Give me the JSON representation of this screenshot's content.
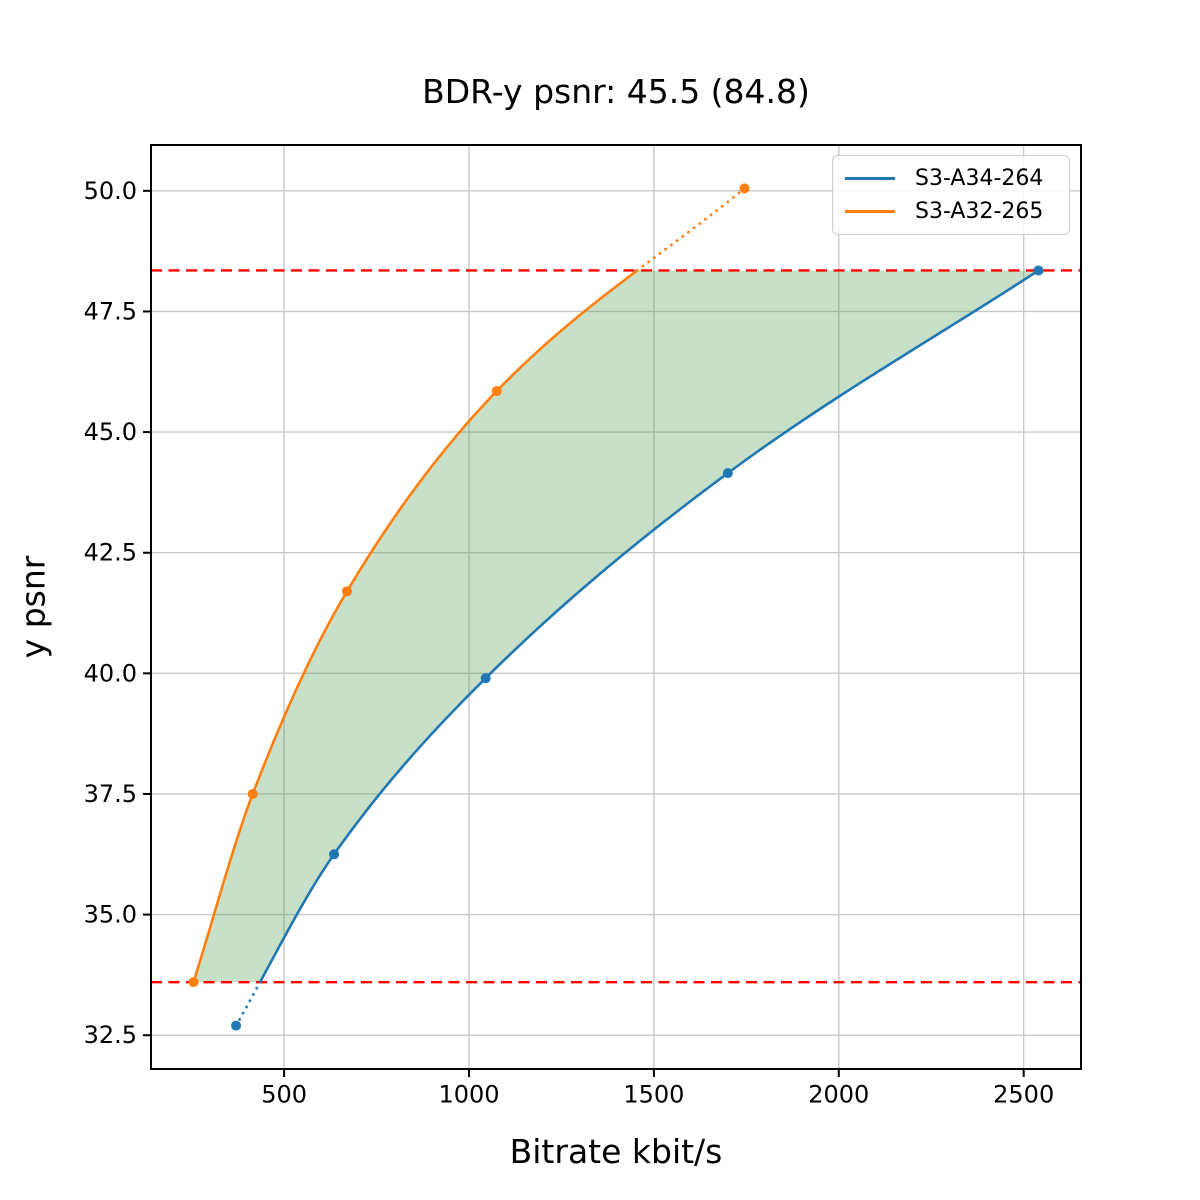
{
  "chart_data": {
    "type": "line",
    "title": "BDR-y psnr: 45.5 (84.8)",
    "xlabel": "Bitrate kbit/s",
    "ylabel": "y psnr",
    "xlim": [
      140,
      2655
    ],
    "ylim": [
      31.8,
      50.95
    ],
    "xticks": {
      "values": [
        500,
        1000,
        1500,
        2000,
        2500
      ],
      "labels": [
        "500",
        "1000",
        "1500",
        "2000",
        "2500"
      ]
    },
    "yticks": {
      "values": [
        32.5,
        35.0,
        37.5,
        40.0,
        42.5,
        45.0,
        47.5,
        50.0
      ],
      "labels": [
        "32.5",
        "35.0",
        "37.5",
        "40.0",
        "42.5",
        "45.0",
        "47.5",
        "50.0"
      ]
    },
    "grid": true,
    "grid_color": "#c8c8c8",
    "series": [
      {
        "name": "S3-A34-264",
        "color": "#1f77b4",
        "marker": "circle",
        "x": [
          370,
          635,
          1045,
          1700,
          2540
        ],
        "y": [
          32.7,
          36.25,
          39.9,
          44.15,
          48.35
        ]
      },
      {
        "name": "S3-A32-265",
        "color": "#ff7f0e",
        "marker": "circle",
        "x": [
          255,
          415,
          670,
          1075,
          1745
        ],
        "y": [
          33.6,
          37.5,
          41.7,
          45.85,
          50.05
        ]
      }
    ],
    "hlines": {
      "values": [
        33.6,
        48.35
      ],
      "color": "#ff0000",
      "style": "dashed"
    },
    "shaded_region": {
      "between_series": [
        "S3-A32-265",
        "S3-A34-264"
      ],
      "y_range": [
        33.6,
        48.35
      ],
      "fill": "#4f9a4c",
      "alpha": 0.31
    },
    "legend": {
      "position": "upper right",
      "entries": [
        "S3-A34-264",
        "S3-A32-265"
      ]
    }
  }
}
